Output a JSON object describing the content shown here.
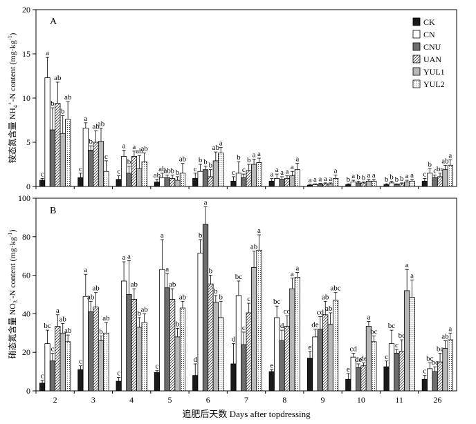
{
  "figure": {
    "xlabel": "追肥后天数 Days after topdressing",
    "legend": [
      "CK",
      "CN",
      "CNU",
      "UAN",
      "YUL1",
      "YUL2"
    ],
    "categories": [
      "2",
      "3",
      "4",
      "5",
      "6",
      "7",
      "8",
      "9",
      "10",
      "11",
      "26"
    ],
    "colors": {
      "CK": "#1a1a1a",
      "CN": "#ffffff",
      "CNU": "#6e6e6e",
      "UAN": "hatch",
      "YUL1": "#b8b8b8",
      "YUL2": "dots"
    }
  },
  "chart_data": [
    {
      "type": "bar",
      "panel": "A",
      "ylabel": "铵态氮含量 NH4+-N content (mg·kg-1)",
      "ylim": [
        0,
        20
      ],
      "yticks": [
        0,
        5,
        10,
        15,
        20
      ],
      "categories": [
        "2",
        "3",
        "4",
        "5",
        "6",
        "7",
        "8",
        "9",
        "10",
        "11",
        "26"
      ],
      "series": [
        {
          "name": "CK",
          "values": [
            0.7,
            1.0,
            0.8,
            0.5,
            0.9,
            0.6,
            0.6,
            0.15,
            0.2,
            0.2,
            0.6
          ],
          "errors": [
            0.2,
            0.5,
            0.4,
            0.3,
            0.6,
            0.5,
            0.3,
            0.1,
            0.1,
            0.1,
            0.3
          ],
          "letters": [
            "c",
            "c",
            "c",
            "ab",
            "c",
            "c",
            "a",
            "a",
            "b",
            "b",
            "c"
          ]
        },
        {
          "name": "CN",
          "values": [
            12.3,
            6.6,
            3.4,
            1.0,
            1.7,
            1.5,
            0.9,
            0.2,
            0.5,
            0.4,
            1.5
          ],
          "errors": [
            2.3,
            0.6,
            0.7,
            0.5,
            0.8,
            1.3,
            0.5,
            0.1,
            0.2,
            0.2,
            0.5
          ],
          "letters": [
            "a",
            "a",
            "a",
            "ab",
            "b",
            "b",
            "a",
            "a",
            "a",
            "b",
            "b"
          ]
        },
        {
          "name": "CNU",
          "values": [
            6.4,
            4.1,
            1.5,
            1.0,
            1.9,
            1.0,
            0.8,
            0.25,
            0.4,
            0.2,
            1.0
          ],
          "errors": [
            2.5,
            0.5,
            0.8,
            0.3,
            0.4,
            0.4,
            0.3,
            0.1,
            0.2,
            0.1,
            0.3
          ],
          "letters": [
            "b",
            "b",
            "b",
            "ab",
            "b",
            "c",
            "a",
            "a",
            "b",
            "b",
            "c"
          ]
        },
        {
          "name": "UAN",
          "values": [
            9.4,
            5.0,
            3.4,
            0.9,
            1.1,
            1.8,
            0.9,
            0.3,
            0.4,
            0.3,
            1.1
          ],
          "errors": [
            2.4,
            1.3,
            0.6,
            0.4,
            0.8,
            0.7,
            0.3,
            0.1,
            0.1,
            0.1,
            0.4
          ],
          "letters": [
            "ab",
            "ab",
            "a",
            "b",
            "b",
            "b",
            "a",
            "a",
            "b",
            "b",
            "bc"
          ]
        },
        {
          "name": "YUL1",
          "values": [
            6.0,
            5.1,
            2.0,
            0.7,
            2.9,
            2.5,
            1.2,
            0.3,
            0.6,
            0.5,
            1.9
          ],
          "errors": [
            2.0,
            1.5,
            1.5,
            0.4,
            1.0,
            0.6,
            0.5,
            0.1,
            0.2,
            0.2,
            0.5
          ],
          "letters": [
            "b",
            "ab",
            "ab",
            "b",
            "ab",
            "a",
            "a",
            "a",
            "a",
            "a",
            "ab"
          ]
        },
        {
          "name": "YUL2",
          "values": [
            7.6,
            1.7,
            2.8,
            1.5,
            3.8,
            2.7,
            1.9,
            0.9,
            0.6,
            0.6,
            2.4
          ],
          "errors": [
            2.0,
            1.2,
            1.0,
            1.1,
            0.6,
            0.5,
            0.7,
            0.4,
            0.2,
            0.2,
            0.6
          ],
          "letters": [
            "ab",
            "c",
            "ab",
            "ab",
            "a",
            "a",
            "a",
            "a",
            "a",
            "a",
            "a"
          ]
        }
      ]
    },
    {
      "type": "bar",
      "panel": "B",
      "ylabel": "硝态氮含量 NO3--N content (mg·kg-1)",
      "ylim": [
        0,
        100
      ],
      "yticks": [
        0,
        20,
        40,
        60,
        80,
        100
      ],
      "categories": [
        "2",
        "3",
        "4",
        "5",
        "6",
        "7",
        "8",
        "9",
        "10",
        "11",
        "26"
      ],
      "series": [
        {
          "name": "CK",
          "values": [
            4,
            11,
            5,
            9.5,
            8,
            14,
            10,
            17,
            6,
            12.5,
            6
          ],
          "errors": [
            1.5,
            2.0,
            2.0,
            1.0,
            6.0,
            10.5,
            1.0,
            3.5,
            3.0,
            3.0,
            2.0
          ],
          "letters": [
            "c",
            "c",
            "c",
            "c",
            "d",
            "d",
            "e",
            "e",
            "e",
            "c",
            "c"
          ]
        },
        {
          "name": "CN",
          "values": [
            24.5,
            49,
            57,
            63,
            71.5,
            49.5,
            38,
            28,
            17.5,
            24.5,
            11.5
          ],
          "errors": [
            7.0,
            11.5,
            10.0,
            15.5,
            7.0,
            7.5,
            6.0,
            4.0,
            2.0,
            7.0,
            3.0
          ],
          "letters": [
            "bc",
            "a",
            "a",
            "a",
            "b",
            "bc",
            "bc",
            "de",
            "cd",
            "bc",
            "bc"
          ]
        },
        {
          "name": "CNU",
          "values": [
            15.5,
            41,
            50,
            53.5,
            86.5,
            24,
            26,
            32,
            12,
            19.5,
            10
          ],
          "errors": [
            4.0,
            5.5,
            17.5,
            7.5,
            9.0,
            6.5,
            5.5,
            6.5,
            2.0,
            2.0,
            2.5
          ],
          "letters": [
            "c",
            "ab",
            "a",
            "a",
            "a",
            "c",
            "d",
            "cd",
            "de",
            "c",
            "bc"
          ]
        },
        {
          "name": "UAN",
          "values": [
            33.5,
            43.5,
            47.5,
            47.5,
            55.5,
            40.5,
            33.5,
            39.5,
            13,
            20.5,
            15
          ],
          "errors": [
            6.0,
            7.5,
            5.5,
            5.5,
            4.5,
            5.0,
            5.5,
            7.0,
            1.5,
            6.0,
            4.5
          ],
          "letters": [
            "a",
            "ab",
            "ab",
            "ab",
            "b",
            "c",
            "cd",
            "ab",
            "de",
            "bc",
            "bc"
          ]
        },
        {
          "name": "YUL1",
          "values": [
            30,
            26,
            33,
            28,
            46,
            64,
            53,
            34.5,
            33.5,
            52,
            22
          ],
          "errors": [
            5.0,
            2.5,
            5.0,
            4.5,
            3.5,
            8.5,
            5.5,
            6.0,
            2.5,
            11.0,
            4.0
          ],
          "letters": [
            "ab",
            "b",
            "b",
            "b",
            "b",
            "ab",
            "a",
            "abc",
            "a",
            "a",
            "ab"
          ]
        },
        {
          "name": "YUL2",
          "values": [
            25.5,
            30,
            35.5,
            43,
            38,
            73,
            59,
            47,
            25.5,
            48.5,
            26.5
          ],
          "errors": [
            3.5,
            5.5,
            4.5,
            3.5,
            8.5,
            8.0,
            2.5,
            4.0,
            3.0,
            9.0,
            3.5
          ],
          "letters": [
            "ab",
            "ab",
            "ab",
            "ab",
            "b",
            "a",
            "a",
            "abc",
            "bc",
            "a",
            "a"
          ]
        }
      ]
    }
  ]
}
